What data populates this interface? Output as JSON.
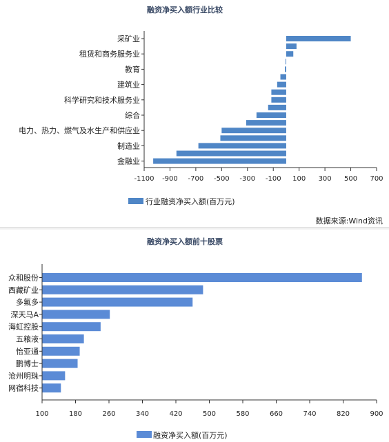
{
  "chart_data": [
    {
      "type": "bar",
      "orientation": "horizontal",
      "title": "融资净买入额行业比较",
      "categories": [
        "采矿业",
        "",
        "租赁和商务服务业",
        "",
        "教育",
        "",
        "建筑业",
        "",
        "科学研究和技术服务业",
        "",
        "综合",
        "",
        "电力、热力、燃气及水生产和供应业",
        "",
        "制造业",
        "",
        "金融业"
      ],
      "values": [
        500,
        80,
        55,
        -5,
        -10,
        -45,
        -70,
        -115,
        -115,
        -140,
        -230,
        -310,
        -500,
        -510,
        -680,
        -850,
        -1030
      ],
      "x_ticks": [
        "-1100",
        "-900",
        "-700",
        "-500",
        "-300",
        "-100",
        "100",
        "300",
        "500",
        "700"
      ],
      "xlim": [
        -1100,
        700
      ],
      "legend": "行业融资净买入额(百万元)",
      "grid": false
    },
    {
      "type": "bar",
      "orientation": "horizontal",
      "title": "融资净买入额前十股票",
      "categories": [
        "众和股份",
        "西藏矿业",
        "多氟多",
        "深天马A",
        "海虹控股",
        "五粮液",
        "怡亚通",
        "鹏博士",
        "沧州明珠",
        "网宿科技"
      ],
      "values": [
        865,
        485,
        460,
        262,
        240,
        200,
        190,
        185,
        155,
        145
      ],
      "x_ticks": [
        "100",
        "180",
        "260",
        "340",
        "420",
        "500",
        "580",
        "660",
        "740",
        "820",
        "900"
      ],
      "xlim": [
        100,
        900
      ],
      "legend": "融资净买入额(百万元)",
      "grid": false
    }
  ],
  "source_note": "数据来源:Wind资讯"
}
